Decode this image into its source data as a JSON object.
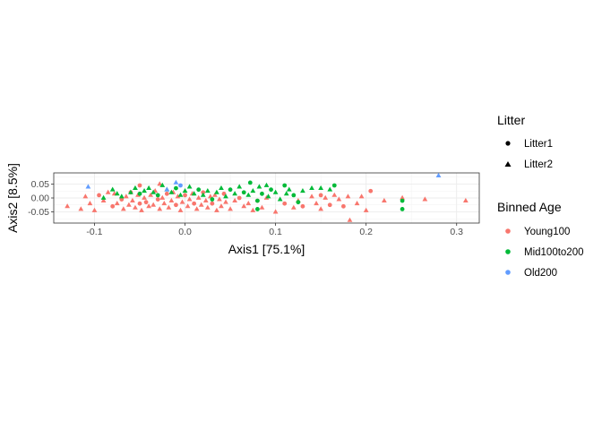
{
  "chart_data": {
    "type": "scatter",
    "xlabel": "Axis1   [75.1%]",
    "ylabel": "Axis2   [8.5%]",
    "xlim": [
      -0.145,
      0.325
    ],
    "ylim": [
      -0.09,
      0.09
    ],
    "x_ticks": [
      -0.1,
      0.0,
      0.1,
      0.2,
      0.3
    ],
    "x_tick_labels": [
      "-0.1",
      "0.0",
      "0.1",
      "0.2",
      "0.3"
    ],
    "y_ticks": [
      -0.05,
      0.0,
      0.05
    ],
    "y_tick_labels": [
      "-0.05",
      "0.00",
      "0.05"
    ],
    "grid": true,
    "legends": [
      {
        "title": "Litter",
        "entries": [
          {
            "label": "Litter1",
            "shape": "circle"
          },
          {
            "label": "Litter2",
            "shape": "triangle"
          }
        ]
      },
      {
        "title": "Binned Age",
        "entries": [
          {
            "label": "Young100",
            "color": "#F8766D"
          },
          {
            "label": "Mid100to200",
            "color": "#00BA38"
          },
          {
            "label": "Old200",
            "color": "#619CFF"
          }
        ]
      }
    ],
    "legend_position": "right",
    "series": [
      {
        "name": "Young100",
        "color": "#F8766D",
        "points": [
          [
            -0.13,
            -0.03,
            "t"
          ],
          [
            -0.115,
            -0.04,
            "t"
          ],
          [
            -0.11,
            0.005,
            "t"
          ],
          [
            -0.105,
            -0.02,
            "t"
          ],
          [
            -0.1,
            -0.045,
            "t"
          ],
          [
            -0.095,
            0.01,
            "c"
          ],
          [
            -0.09,
            -0.01,
            "t"
          ],
          [
            -0.085,
            0.02,
            "t"
          ],
          [
            -0.08,
            -0.03,
            "c"
          ],
          [
            -0.078,
            0.015,
            "t"
          ],
          [
            -0.075,
            -0.02,
            "t"
          ],
          [
            -0.07,
            -0.005,
            "c"
          ],
          [
            -0.068,
            -0.04,
            "t"
          ],
          [
            -0.065,
            0.005,
            "t"
          ],
          [
            -0.062,
            -0.025,
            "t"
          ],
          [
            -0.06,
            0.02,
            "c"
          ],
          [
            -0.058,
            -0.01,
            "t"
          ],
          [
            -0.055,
            -0.035,
            "t"
          ],
          [
            -0.052,
            0.01,
            "t"
          ],
          [
            -0.05,
            -0.02,
            "c"
          ],
          [
            -0.048,
            -0.045,
            "t"
          ],
          [
            -0.045,
            0.0,
            "t"
          ],
          [
            -0.043,
            -0.015,
            "c"
          ],
          [
            -0.04,
            -0.03,
            "t"
          ],
          [
            -0.038,
            0.01,
            "t"
          ],
          [
            -0.035,
            -0.025,
            "t"
          ],
          [
            -0.033,
            0.025,
            "t"
          ],
          [
            -0.03,
            -0.005,
            "c"
          ],
          [
            -0.028,
            -0.04,
            "t"
          ],
          [
            -0.025,
            0.0,
            "t"
          ],
          [
            -0.023,
            -0.02,
            "t"
          ],
          [
            -0.02,
            0.015,
            "c"
          ],
          [
            -0.018,
            -0.035,
            "t"
          ],
          [
            -0.015,
            -0.01,
            "t"
          ],
          [
            -0.013,
            0.02,
            "t"
          ],
          [
            -0.01,
            -0.025,
            "c"
          ],
          [
            -0.008,
            0.005,
            "t"
          ],
          [
            -0.005,
            -0.045,
            "t"
          ],
          [
            -0.003,
            -0.015,
            "t"
          ],
          [
            0.0,
            0.01,
            "c"
          ],
          [
            0.003,
            -0.03,
            "t"
          ],
          [
            0.005,
            -0.005,
            "t"
          ],
          [
            0.008,
            0.015,
            "t"
          ],
          [
            0.01,
            -0.02,
            "c"
          ],
          [
            0.013,
            -0.04,
            "t"
          ],
          [
            0.015,
            0.0,
            "t"
          ],
          [
            0.018,
            -0.025,
            "t"
          ],
          [
            0.02,
            0.02,
            "c"
          ],
          [
            0.023,
            -0.01,
            "t"
          ],
          [
            0.025,
            -0.035,
            "t"
          ],
          [
            0.028,
            0.005,
            "t"
          ],
          [
            0.03,
            -0.02,
            "c"
          ],
          [
            0.033,
            0.01,
            "t"
          ],
          [
            0.035,
            -0.045,
            "t"
          ],
          [
            0.038,
            -0.005,
            "t"
          ],
          [
            0.04,
            -0.03,
            "t"
          ],
          [
            0.043,
            0.015,
            "c"
          ],
          [
            0.045,
            -0.015,
            "t"
          ],
          [
            0.05,
            -0.04,
            "t"
          ],
          [
            0.055,
            -0.01,
            "t"
          ],
          [
            0.06,
            0.0,
            "c"
          ],
          [
            0.065,
            -0.03,
            "t"
          ],
          [
            0.07,
            -0.02,
            "t"
          ],
          [
            0.075,
            -0.045,
            "t"
          ],
          [
            0.08,
            -0.01,
            "c"
          ],
          [
            0.085,
            -0.035,
            "t"
          ],
          [
            0.09,
            0.0,
            "t"
          ],
          [
            0.1,
            -0.05,
            "t"
          ],
          [
            0.11,
            -0.02,
            "c"
          ],
          [
            0.12,
            -0.035,
            "t"
          ],
          [
            0.125,
            -0.01,
            "t"
          ],
          [
            0.13,
            -0.03,
            "c"
          ],
          [
            0.14,
            0.005,
            "t"
          ],
          [
            0.145,
            -0.02,
            "t"
          ],
          [
            0.15,
            -0.04,
            "t"
          ],
          [
            0.155,
            0.0,
            "t"
          ],
          [
            0.16,
            -0.025,
            "c"
          ],
          [
            0.165,
            0.01,
            "t"
          ],
          [
            0.17,
            -0.005,
            "t"
          ],
          [
            0.175,
            -0.03,
            "c"
          ],
          [
            0.18,
            0.005,
            "t"
          ],
          [
            0.182,
            -0.08,
            "t"
          ],
          [
            0.19,
            -0.02,
            "t"
          ],
          [
            0.195,
            0.005,
            "t"
          ],
          [
            0.2,
            -0.045,
            "t"
          ],
          [
            0.205,
            0.025,
            "c"
          ],
          [
            0.22,
            -0.01,
            "t"
          ],
          [
            0.24,
            0.0,
            "t"
          ],
          [
            0.265,
            -0.005,
            "t"
          ],
          [
            0.31,
            -0.01,
            "t"
          ],
          [
            -0.028,
            0.05,
            "t"
          ],
          [
            -0.05,
            0.045,
            "c"
          ],
          [
            0.15,
            0.01,
            "c"
          ]
        ]
      },
      {
        "name": "Mid100to200",
        "color": "#00BA38",
        "points": [
          [
            -0.09,
            0.0,
            "t"
          ],
          [
            -0.08,
            0.03,
            "t"
          ],
          [
            -0.075,
            0.015,
            "t"
          ],
          [
            -0.07,
            0.005,
            "t"
          ],
          [
            -0.06,
            0.02,
            "t"
          ],
          [
            -0.055,
            0.035,
            "t"
          ],
          [
            -0.05,
            0.015,
            "c"
          ],
          [
            -0.045,
            0.025,
            "t"
          ],
          [
            -0.04,
            0.035,
            "t"
          ],
          [
            -0.035,
            0.02,
            "t"
          ],
          [
            -0.03,
            0.01,
            "c"
          ],
          [
            -0.025,
            0.045,
            "t"
          ],
          [
            -0.02,
            0.03,
            "t"
          ],
          [
            -0.015,
            0.02,
            "t"
          ],
          [
            -0.01,
            0.035,
            "c"
          ],
          [
            -0.005,
            0.01,
            "t"
          ],
          [
            0.0,
            0.025,
            "t"
          ],
          [
            0.005,
            0.04,
            "t"
          ],
          [
            0.01,
            0.015,
            "t"
          ],
          [
            0.015,
            0.03,
            "c"
          ],
          [
            0.02,
            0.01,
            "t"
          ],
          [
            0.025,
            0.025,
            "t"
          ],
          [
            0.03,
            -0.005,
            "c"
          ],
          [
            0.035,
            0.02,
            "t"
          ],
          [
            0.04,
            0.035,
            "t"
          ],
          [
            0.045,
            0.005,
            "t"
          ],
          [
            0.05,
            0.03,
            "c"
          ],
          [
            0.055,
            0.015,
            "t"
          ],
          [
            0.06,
            0.04,
            "t"
          ],
          [
            0.065,
            0.02,
            "c"
          ],
          [
            0.07,
            0.01,
            "t"
          ],
          [
            0.072,
            0.055,
            "c"
          ],
          [
            0.075,
            0.025,
            "t"
          ],
          [
            0.08,
            -0.01,
            "c"
          ],
          [
            0.082,
            0.04,
            "t"
          ],
          [
            0.085,
            0.015,
            "c"
          ],
          [
            0.09,
            0.045,
            "t"
          ],
          [
            0.092,
            0.005,
            "t"
          ],
          [
            0.095,
            0.03,
            "c"
          ],
          [
            0.1,
            0.02,
            "t"
          ],
          [
            0.105,
            -0.005,
            "t"
          ],
          [
            0.11,
            0.045,
            "c"
          ],
          [
            0.112,
            0.015,
            "t"
          ],
          [
            0.115,
            0.03,
            "t"
          ],
          [
            0.12,
            0.01,
            "c"
          ],
          [
            0.125,
            -0.015,
            "c"
          ],
          [
            0.13,
            0.025,
            "t"
          ],
          [
            0.14,
            0.035,
            "t"
          ],
          [
            0.15,
            0.035,
            "t"
          ],
          [
            0.16,
            0.03,
            "t"
          ],
          [
            0.24,
            -0.01,
            "c"
          ],
          [
            0.24,
            -0.04,
            "c"
          ],
          [
            0.165,
            0.045,
            "c"
          ],
          [
            0.08,
            -0.04,
            "c"
          ]
        ]
      },
      {
        "name": "Old200",
        "color": "#619CFF",
        "points": [
          [
            -0.107,
            0.04,
            "t"
          ],
          [
            -0.01,
            0.055,
            "t"
          ],
          [
            -0.005,
            0.045,
            "c"
          ],
          [
            -0.02,
            0.03,
            "t"
          ],
          [
            0.28,
            0.08,
            "t"
          ]
        ]
      }
    ]
  }
}
